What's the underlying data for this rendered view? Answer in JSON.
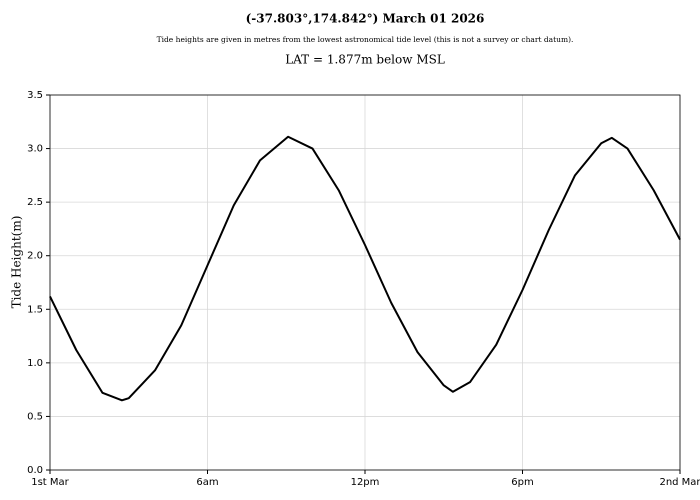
{
  "chart_data": {
    "type": "line",
    "title": "(-37.803°,174.842°) March 01 2026",
    "subtitle": "Tide heights are given in metres from the lowest astronomical tide level (this is not a survey or chart datum).",
    "annotation": "LAT = 1.877m below MSL",
    "y_label": "Tide Height(m)",
    "x": [
      0,
      1,
      2,
      2.74,
      3,
      4,
      5,
      6,
      7,
      8,
      9.07,
      10,
      11,
      12,
      13,
      14,
      15,
      15.35,
      16,
      17,
      18,
      19,
      20,
      21,
      21.4,
      22,
      23,
      24
    ],
    "series": [
      {
        "name": "Tide height",
        "color": "#000000",
        "values": [
          1.62,
          1.12,
          0.72,
          0.65,
          0.67,
          0.93,
          1.35,
          1.91,
          2.47,
          2.89,
          3.11,
          3.0,
          2.61,
          2.1,
          1.56,
          1.1,
          0.79,
          0.73,
          0.82,
          1.17,
          1.68,
          2.24,
          2.75,
          3.05,
          3.1,
          3.0,
          2.61,
          2.15
        ]
      }
    ],
    "xlim": [
      0,
      24
    ],
    "xticks": [
      {
        "value": 0,
        "label": "1st Mar"
      },
      {
        "value": 6,
        "label": "6am"
      },
      {
        "value": 12,
        "label": "12pm"
      },
      {
        "value": 18,
        "label": "6pm"
      },
      {
        "value": 24,
        "label": "2nd Mar"
      }
    ],
    "ylim": [
      0,
      3.5
    ],
    "yticks": [
      {
        "value": 0,
        "label": "0.0"
      },
      {
        "value": 0.5,
        "label": "0.5"
      },
      {
        "value": 1,
        "label": "1.0"
      },
      {
        "value": 1.5,
        "label": "1.5"
      },
      {
        "value": 2,
        "label": "2.0"
      },
      {
        "value": 2.5,
        "label": "2.5"
      },
      {
        "value": 3,
        "label": "3.0"
      },
      {
        "value": 3.5,
        "label": "3.5"
      }
    ],
    "grid": true
  }
}
